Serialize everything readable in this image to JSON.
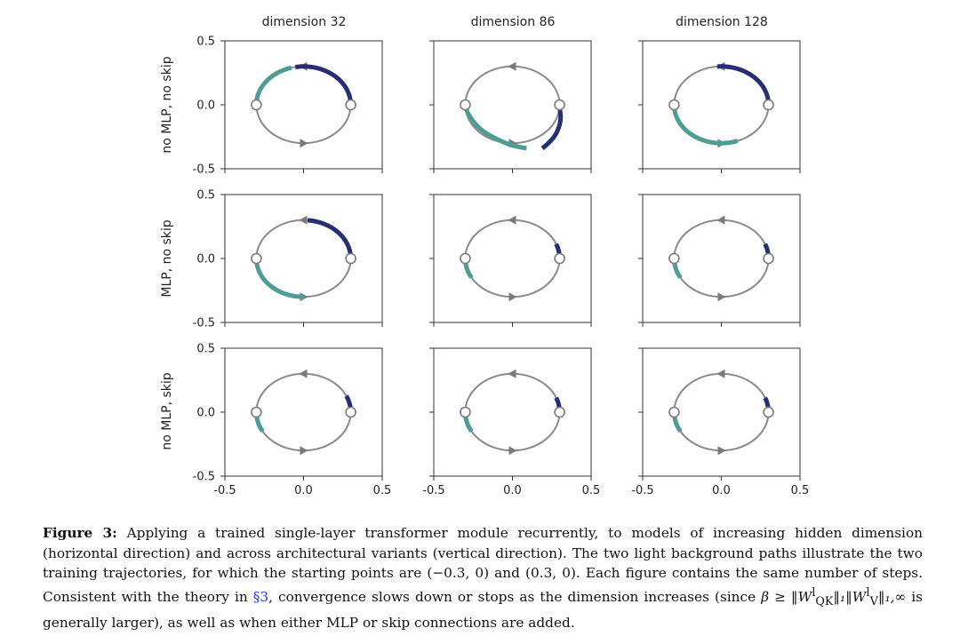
{
  "figure": {
    "columns": [
      "dimension 32",
      "dimension 86",
      "dimension 128"
    ],
    "rows": [
      "no MLP, no skip",
      "MLP, no skip",
      "no MLP, skip"
    ],
    "y_ticks": [
      "0.5",
      "0.0",
      "-0.5"
    ],
    "x_ticks": [
      "-0.5",
      "0.0",
      "0.5"
    ],
    "colors": {
      "teal": "#4e9d94",
      "navy": "#262f73",
      "circle": "#8a8a8a"
    }
  },
  "chart_data": {
    "type": "scatter",
    "layout": "3x3 small multiples",
    "description_ref": "grid",
    "xlim": [
      -0.5,
      0.5
    ],
    "ylim": [
      -0.5,
      0.5
    ],
    "x_ticks": [
      -0.5,
      0.0,
      0.5
    ],
    "y_ticks": [
      -0.5,
      0.0,
      0.5
    ],
    "background_path": {
      "shape": "ellipse",
      "center": [
        0,
        0
      ],
      "rx": 0.3,
      "ry": 0.3
    },
    "start_points": [
      [
        -0.3,
        0.0
      ],
      [
        0.3,
        0.0
      ]
    ],
    "panels": [
      {
        "row": "no MLP, no skip",
        "col": "dimension 32",
        "teal": {
          "shape": "arc",
          "from_deg": 180,
          "to_deg": 105
        },
        "navy": {
          "shape": "arc",
          "from_deg": 0,
          "to_deg": 100
        }
      },
      {
        "row": "no MLP, no skip",
        "col": "dimension 86",
        "teal": {
          "shape": "points",
          "pts": [
            [
              -0.3,
              -0.02
            ],
            [
              -0.27,
              -0.1
            ],
            [
              -0.2,
              -0.2
            ],
            [
              -0.1,
              -0.27
            ],
            [
              0.0,
              -0.32
            ],
            [
              0.09,
              -0.34
            ]
          ]
        },
        "navy": {
          "shape": "points",
          "pts": [
            [
              0.3,
              -0.02
            ],
            [
              0.31,
              -0.12
            ],
            [
              0.28,
              -0.23
            ],
            [
              0.23,
              -0.3
            ],
            [
              0.19,
              -0.34
            ]
          ]
        }
      },
      {
        "row": "no MLP, no skip",
        "col": "dimension 128",
        "teal": {
          "shape": "arc",
          "from_deg": 180,
          "to_deg": 290
        },
        "navy": {
          "shape": "arc",
          "from_deg": 0,
          "to_deg": 95
        }
      },
      {
        "row": "MLP, no skip",
        "col": "dimension 32",
        "teal": {
          "shape": "arc",
          "from_deg": 180,
          "to_deg": 270
        },
        "navy": {
          "shape": "arc",
          "from_deg": 0,
          "to_deg": 85
        }
      },
      {
        "row": "MLP, no skip",
        "col": "dimension 86",
        "teal": {
          "shape": "arc",
          "from_deg": 180,
          "to_deg": 210
        },
        "navy": {
          "shape": "arc",
          "from_deg": 0,
          "to_deg": 22
        }
      },
      {
        "row": "MLP, no skip",
        "col": "dimension 128",
        "teal": {
          "shape": "arc",
          "from_deg": 180,
          "to_deg": 210
        },
        "navy": {
          "shape": "arc",
          "from_deg": 0,
          "to_deg": 22
        }
      },
      {
        "row": "no MLP, skip",
        "col": "dimension 32",
        "teal": {
          "shape": "arc",
          "from_deg": 180,
          "to_deg": 210
        },
        "navy": {
          "shape": "arc",
          "from_deg": 0,
          "to_deg": 25
        }
      },
      {
        "row": "no MLP, skip",
        "col": "dimension 86",
        "teal": {
          "shape": "arc",
          "from_deg": 180,
          "to_deg": 210
        },
        "navy": {
          "shape": "arc",
          "from_deg": 0,
          "to_deg": 22
        }
      },
      {
        "row": "no MLP, skip",
        "col": "dimension 128",
        "teal": {
          "shape": "arc",
          "from_deg": 180,
          "to_deg": 210
        },
        "navy": {
          "shape": "arc",
          "from_deg": 0,
          "to_deg": 22
        }
      }
    ]
  },
  "caption": {
    "label": "Figure 3:",
    "seg1": " Applying a trained single-layer transformer module recurrently, to models of increasing hidden dimension (horizontal direction) and across architectural variants (vertical direction). The two light background paths illustrate the two training trajectories, for which the starting points are (−0.3, 0) and (0.3, 0). Each figure contains the same number of steps. Consistent with the theory in ",
    "ref": "§3",
    "seg2": ", convergence slows down or stops as the dimension increases (since ",
    "math": "β ≥ ‖W",
    "math_sup": "l",
    "math_sub": "QK",
    "math_mid": "‖₁‖W",
    "math_sup2": "l",
    "math_sub2": "V",
    "math_end": "‖₁,∞",
    "seg3": " is generally larger), as well as when either MLP or skip connections are added."
  }
}
